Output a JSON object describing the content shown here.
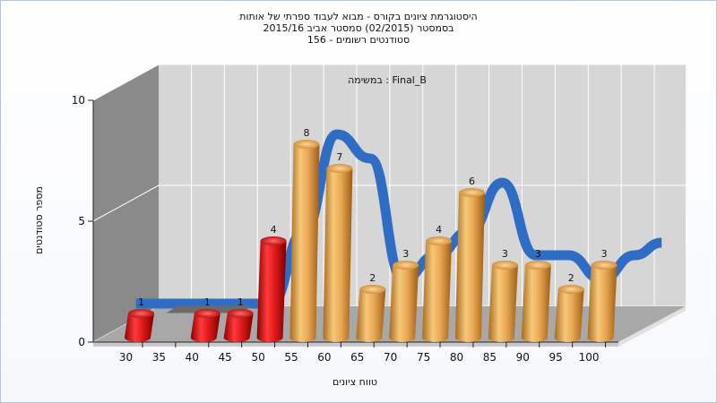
{
  "chart_data": {
    "type": "bar",
    "title_lines": [
      "היסטוגרמת ציונים בקורס - מבוא לעבוד ספרתי של אותות",
      "בסמסטר  (02/2015)  סמסטר אביב 2015/16",
      "סטודנטים רשומים - 156"
    ],
    "subtitle": "במשימה : Final_B",
    "xlabel": "טווח ציונים",
    "ylabel": "מספר סטודנטים",
    "x_ticks": [
      "30",
      "35",
      "40",
      "45",
      "50",
      "55",
      "60",
      "65",
      "70",
      "75",
      "80",
      "85",
      "90",
      "95",
      "100"
    ],
    "y_ticks": [
      "0",
      "5",
      "10"
    ],
    "ylim": [
      0,
      10
    ],
    "bars": [
      {
        "x": 30,
        "value": 1
      },
      {
        "x": 40,
        "value": 1
      },
      {
        "x": 45,
        "value": 1
      },
      {
        "x": 50,
        "value": 4
      },
      {
        "x": 55,
        "value": 8
      },
      {
        "x": 60,
        "value": 7
      },
      {
        "x": 65,
        "value": 2
      },
      {
        "x": 70,
        "value": 3
      },
      {
        "x": 75,
        "value": 4
      },
      {
        "x": 80,
        "value": 6
      },
      {
        "x": 85,
        "value": 3
      },
      {
        "x": 90,
        "value": 3
      },
      {
        "x": 95,
        "value": 2
      },
      {
        "x": 100,
        "value": 3
      }
    ],
    "failing_threshold": 55,
    "colors": {
      "failing": "#dd1010",
      "passing": "#e8a650",
      "curve": "#2f6dc4",
      "back_wall": "#d6d6d6",
      "side_wall": "#8a8a8a",
      "floor": "#a8a8a8"
    },
    "grid": true,
    "legend": "none"
  }
}
